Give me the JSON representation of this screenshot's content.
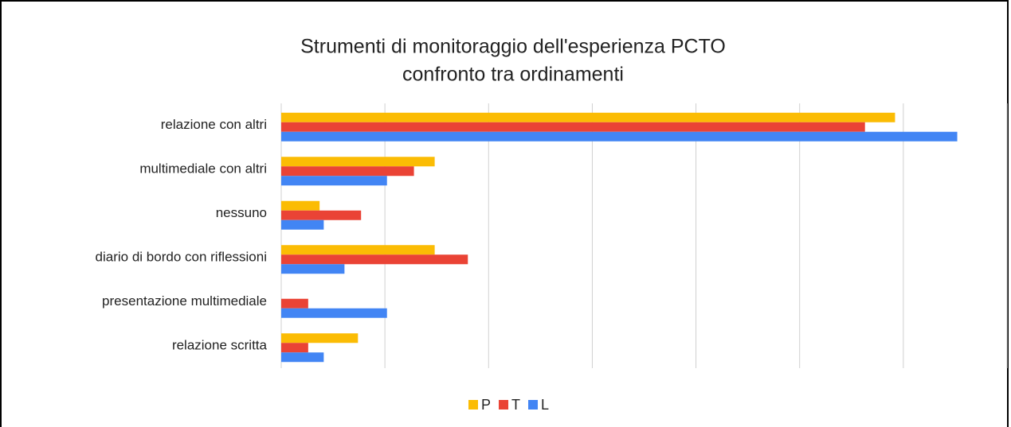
{
  "chart_data": {
    "type": "hbar",
    "title": [
      "Strumenti di monitoraggio dell'esperienza PCTO",
      "confronto tra ordinamenti"
    ],
    "categories": [
      "relazione con altri",
      "multimediale con altri",
      "nessuno",
      "diario di bordo con riflessioni",
      "presentazione multimediale",
      "relazione scritta"
    ],
    "series": [
      {
        "name": "P",
        "color": "#fbbc04",
        "values": [
          5.92,
          1.48,
          0.37,
          1.48,
          0,
          0.74
        ]
      },
      {
        "name": "T",
        "color": "#ea4335",
        "values": [
          5.63,
          1.28,
          0.77,
          1.8,
          0.26,
          0.26
        ]
      },
      {
        "name": "L",
        "color": "#4285f4",
        "values": [
          6.52,
          1.02,
          0.41,
          0.61,
          1.02,
          0.41
        ]
      }
    ],
    "xlim": [
      0,
      7
    ],
    "xticks": [
      0,
      1,
      2,
      3,
      4,
      5,
      6,
      7
    ],
    "grid": true,
    "legend": "bottom"
  }
}
